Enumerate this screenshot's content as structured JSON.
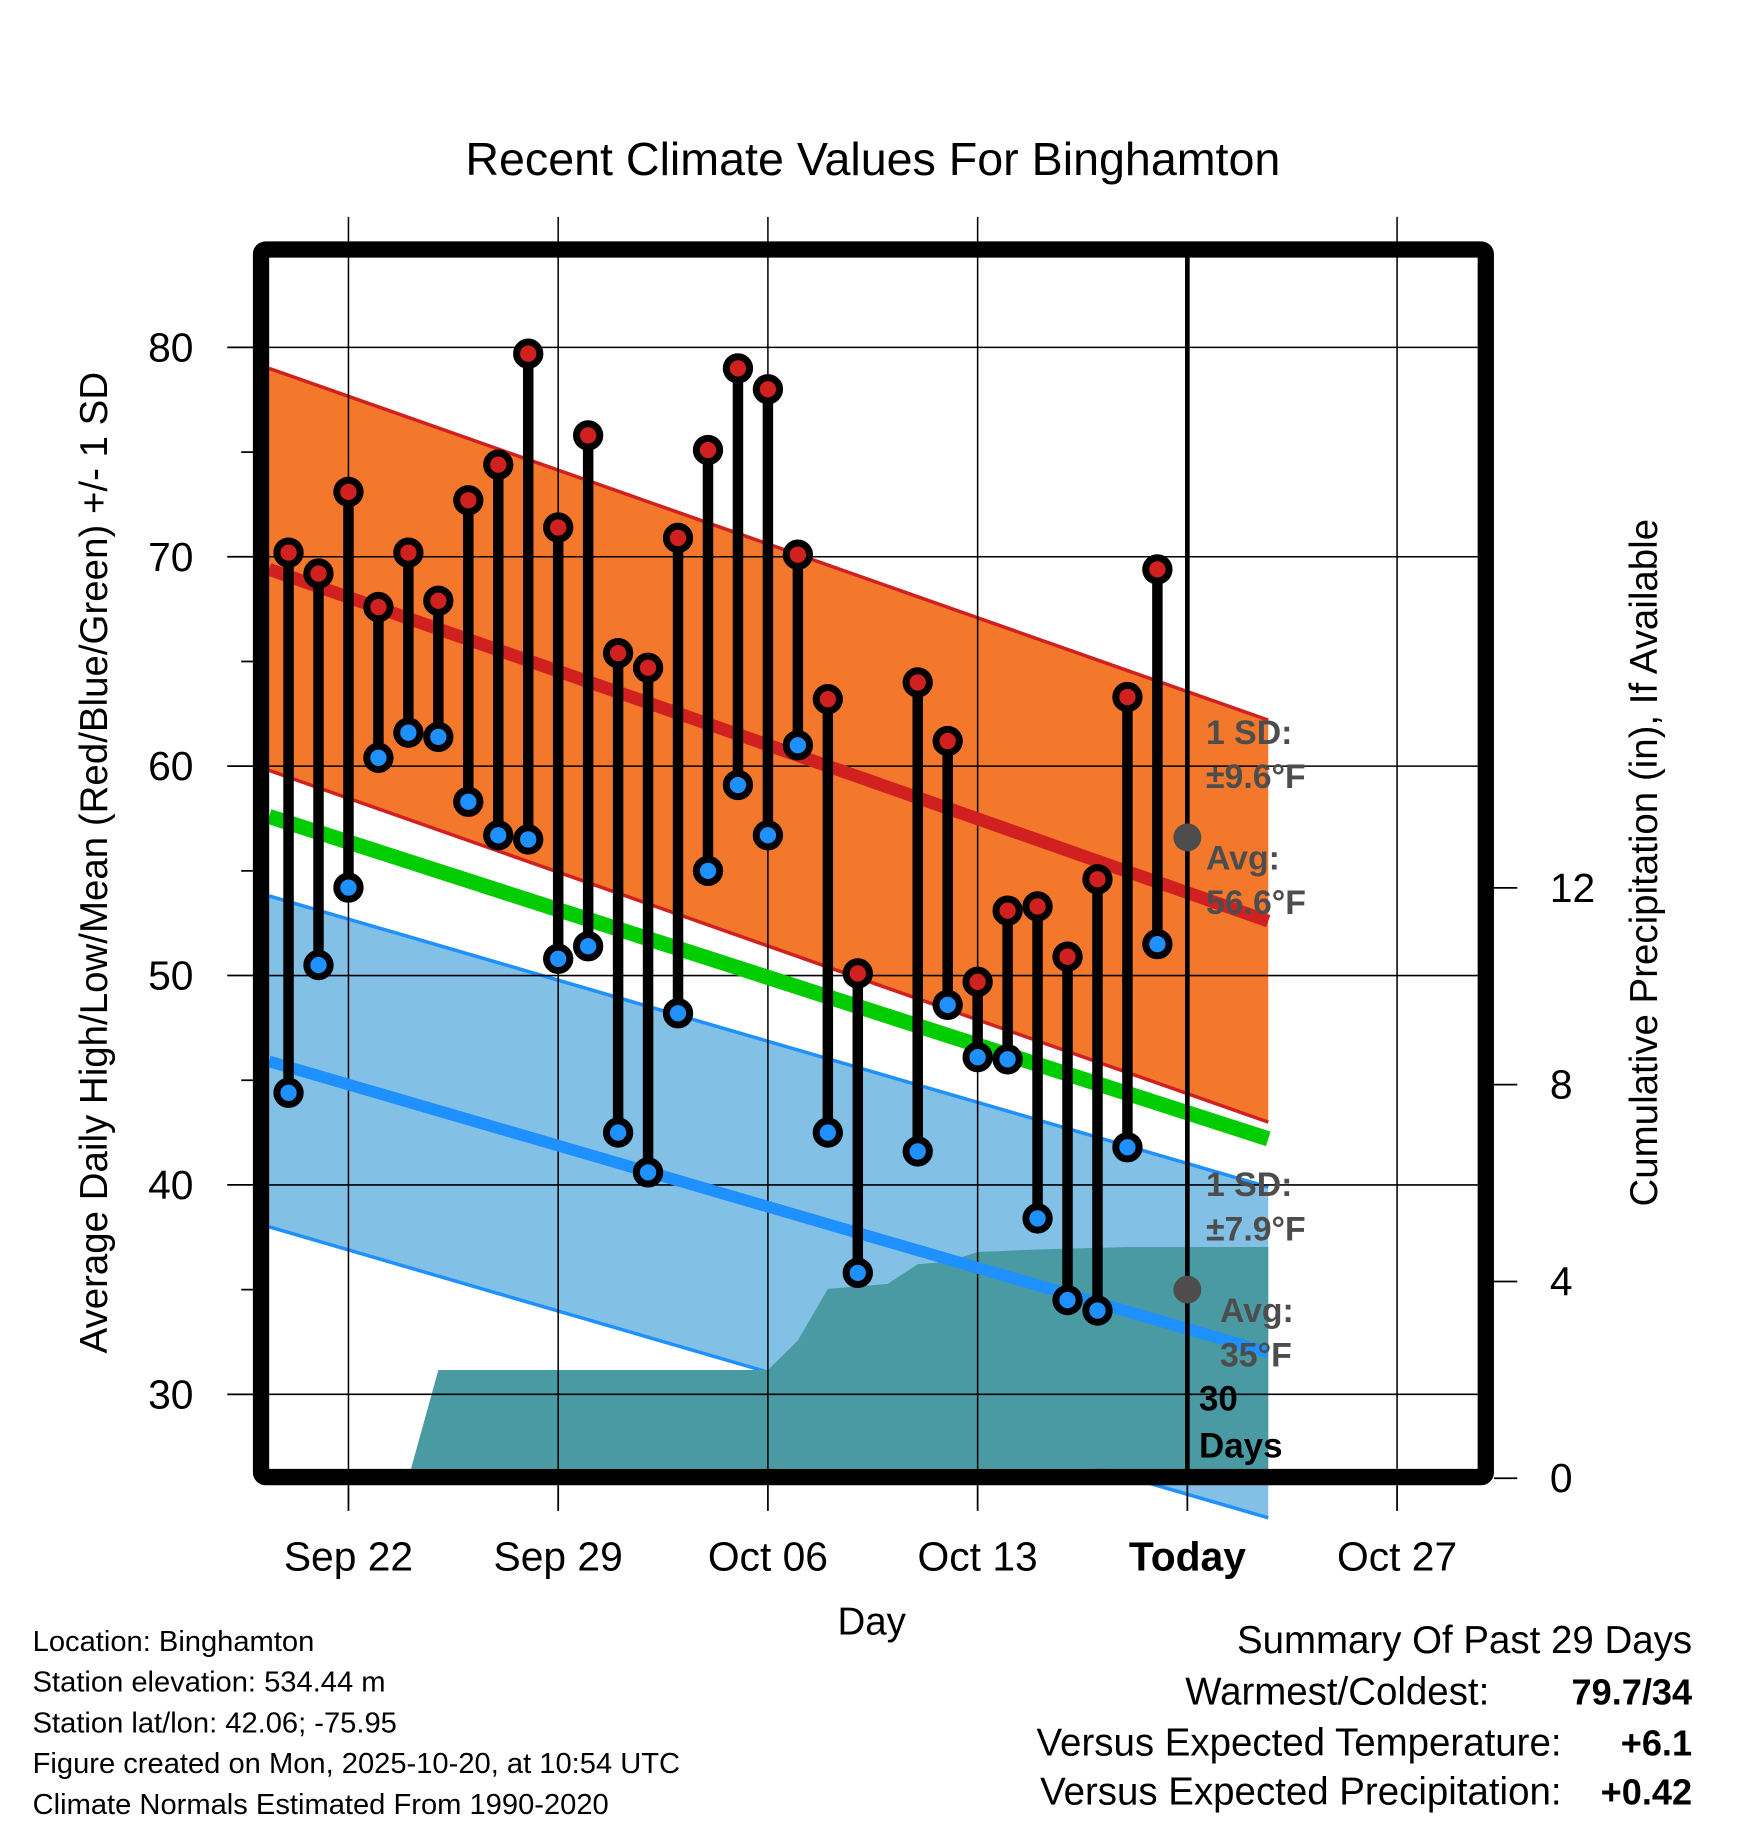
{
  "chart_data": {
    "type": "line",
    "title": "Recent Climate Values For Binghamton",
    "xlabel": "Day",
    "ylabel": "Average Daily High/Low/Mean (Red/Blue/Green) +/- 1 SD",
    "y2label": "Cumulative Precipitation (in), If Available",
    "ylim": [
      26.5,
      84.5
    ],
    "y_ticks": [
      30,
      40,
      50,
      60,
      70,
      80
    ],
    "y2lim": [
      0,
      16
    ],
    "y2_ticks": [
      0,
      4,
      8,
      12
    ],
    "x_start_date": "Sep 20",
    "x_range_days": [
      -0.65,
      32.7
    ],
    "x_ticks": [
      {
        "day": 2,
        "label": "Sep 22",
        "bold": false
      },
      {
        "day": 9,
        "label": "Sep 29",
        "bold": false
      },
      {
        "day": 16,
        "label": "Oct 06",
        "bold": false
      },
      {
        "day": 23,
        "label": "Oct 13",
        "bold": false
      },
      {
        "day": 30,
        "label": "Today",
        "bold": true
      },
      {
        "day": 37,
        "label": "Oct 27",
        "bold": false
      }
    ],
    "grid": true,
    "today_day": 30,
    "days": [
      "Sep 20",
      "Sep 21",
      "Sep 22",
      "Sep 23",
      "Sep 24",
      "Sep 25",
      "Sep 26",
      "Sep 27",
      "Sep 28",
      "Sep 29",
      "Sep 30",
      "Oct 01",
      "Oct 02",
      "Oct 03",
      "Oct 04",
      "Oct 05",
      "Oct 06",
      "Oct 07",
      "Oct 08",
      "Oct 09",
      "Oct 10",
      "Oct 11",
      "Oct 12",
      "Oct 13",
      "Oct 14",
      "Oct 15",
      "Oct 16",
      "Oct 17",
      "Oct 18",
      "Oct 19"
    ],
    "series": [
      {
        "name": "Daily High",
        "color": "#d02020",
        "values": [
          70.2,
          69.2,
          73.1,
          67.6,
          70.2,
          67.9,
          72.7,
          74.4,
          79.7,
          71.4,
          75.8,
          65.4,
          64.7,
          70.9,
          75.1,
          79.0,
          78.0,
          70.1,
          63.2,
          50.1,
          null,
          64.0,
          61.2,
          49.7,
          53.1,
          53.3,
          50.9,
          54.6,
          63.3,
          69.4
        ]
      },
      {
        "name": "Daily Low",
        "color": "#1e90ff",
        "values": [
          44.4,
          50.5,
          54.2,
          60.4,
          61.6,
          61.4,
          58.3,
          56.7,
          56.5,
          50.8,
          51.4,
          42.5,
          40.6,
          48.2,
          55.0,
          59.1,
          56.7,
          61.0,
          42.5,
          35.8,
          null,
          41.6,
          48.6,
          46.1,
          46.0,
          38.4,
          34.5,
          34.0,
          41.8,
          51.5
        ]
      }
    ],
    "normals": {
      "high_avg": {
        "start": 69.4,
        "end": 52.6,
        "today": 56.6,
        "sd": 9.6,
        "color": "#d02020",
        "band_color": "#f4782c"
      },
      "mean_avg": {
        "start": 57.6,
        "end": 42.2,
        "color": "#00cc00"
      },
      "low_avg": {
        "start": 45.9,
        "end": 32.0,
        "today": 35.0,
        "sd": 7.9,
        "color": "#1e90ff",
        "band_color": "#82c0e6"
      }
    },
    "precipitation": {
      "color": "#4a9aa4",
      "points": [
        [
          4.0,
          0.0
        ],
        [
          5.0,
          2.2
        ],
        [
          16.0,
          2.2
        ],
        [
          17.0,
          2.8
        ],
        [
          18.0,
          3.85
        ],
        [
          19.0,
          3.9
        ],
        [
          20.0,
          3.95
        ],
        [
          21.0,
          4.35
        ],
        [
          22.0,
          4.4
        ],
        [
          23.0,
          4.6
        ],
        [
          25.0,
          4.65
        ],
        [
          28.0,
          4.7
        ],
        [
          32.7,
          4.7
        ]
      ]
    },
    "annotations": {
      "high_sd": [
        "1 SD:",
        "±9.6°F"
      ],
      "high_avg": [
        "Avg:",
        "56.6°F"
      ],
      "low_sd": [
        "1 SD:",
        "±7.9°F"
      ],
      "low_avg": [
        "Avg:",
        "35°F"
      ],
      "window": [
        "30",
        "Days"
      ]
    }
  },
  "info": {
    "lines": [
      "Location: Binghamton",
      "Station elevation: 534.44 m",
      "Station lat/lon: 42.06; -75.95",
      "Figure created on Mon, 2025-10-20, at 10:54 UTC",
      "Climate Normals Estimated From 1990-2020"
    ]
  },
  "summary": {
    "heading": "Summary Of Past 29 Days",
    "rows": [
      {
        "label": "Warmest/Coldest:",
        "value": "79.7/34",
        "color": "#000000"
      },
      {
        "label": "Versus Expected Temperature:",
        "value": "+6.1",
        "color": "#d02020"
      },
      {
        "label": "Versus Expected Precipitation:",
        "value": "+0.42",
        "color": "#22bb22"
      }
    ]
  }
}
